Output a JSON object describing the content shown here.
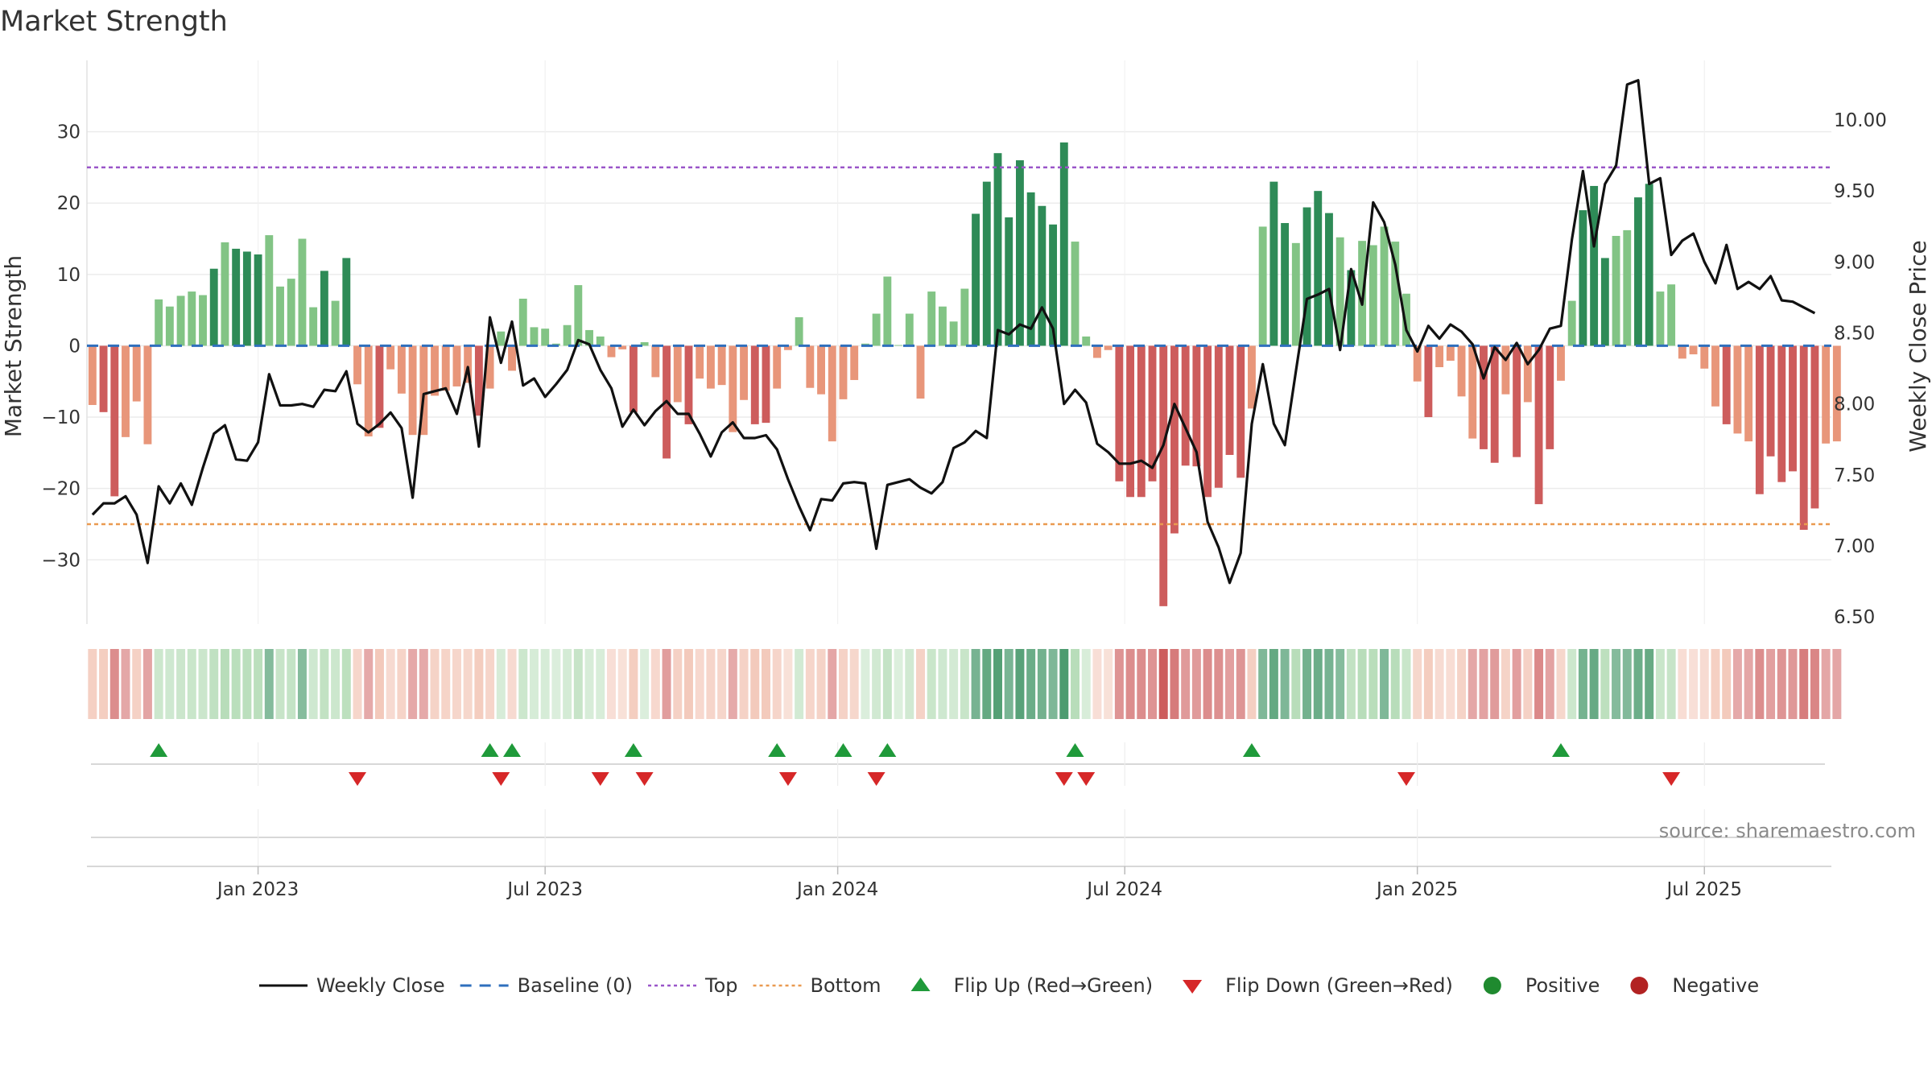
{
  "chart_data": {
    "type": "bar",
    "title": "Market Strength",
    "y_left_label": "Market Strength",
    "y_right_label": "Weekly Close Price",
    "y_left_ticks": [
      "30",
      "20",
      "10",
      "0",
      "−10",
      "−20",
      "−30"
    ],
    "y_left_tick_values": [
      30,
      20,
      10,
      0,
      -10,
      -20,
      -30
    ],
    "y_left_range": [
      -39,
      40
    ],
    "y_right_ticks": [
      "10.00",
      "9.50",
      "9.00",
      "8.50",
      "8.00",
      "7.50",
      "7.00",
      "6.50"
    ],
    "y_right_tick_values": [
      10.0,
      9.5,
      9.0,
      8.5,
      8.0,
      7.5,
      7.0,
      6.5
    ],
    "y_right_range": [
      6.45,
      10.42
    ],
    "x_ticks": [
      "Jan 2023",
      "Jul 2023",
      "Jan 2024",
      "Jul 2024",
      "Jan 2025",
      "Jul 2025"
    ],
    "x_tick_positions": [
      15.0,
      41.0,
      67.5,
      93.5,
      120.0,
      146.0
    ],
    "x_range": [
      -0.5,
      157.5
    ],
    "top_level": 25,
    "bottom_level": -25,
    "baseline": 0,
    "strength": [
      -8.3,
      -9.3,
      -21.1,
      -12.8,
      -7.8,
      -13.8,
      6.5,
      5.5,
      7.0,
      7.6,
      7.1,
      10.8,
      14.5,
      13.6,
      13.2,
      12.8,
      15.5,
      8.3,
      9.4,
      15.0,
      5.4,
      10.5,
      6.3,
      12.3,
      -5.4,
      -12.7,
      -11.5,
      -3.3,
      -6.7,
      -12.5,
      -12.5,
      -7.0,
      -6.3,
      -5.7,
      -5.2,
      -9.8,
      -6.0,
      2.0,
      -3.5,
      6.6,
      2.6,
      2.4,
      0.3,
      2.9,
      8.5,
      2.2,
      1.3,
      -1.6,
      -0.5,
      -9.3,
      0.5,
      -4.4,
      -15.8,
      -7.9,
      -11.0,
      -4.6,
      -6.0,
      -5.5,
      -12.1,
      -7.6,
      -11.0,
      -10.8,
      -6.0,
      -0.6,
      4.0,
      -5.9,
      -6.8,
      -13.4,
      -7.5,
      -4.8,
      0.3,
      4.5,
      9.7,
      0.1,
      4.5,
      -7.4,
      7.6,
      5.5,
      3.4,
      8.0,
      18.5,
      23.0,
      27.0,
      18.0,
      26.0,
      21.5,
      19.6,
      17.0,
      28.5,
      14.6,
      1.3,
      -1.7,
      -0.6,
      -19.0,
      -21.2,
      -21.2,
      -19.0,
      -36.5,
      -26.3,
      -16.8,
      -16.9,
      -21.2,
      -19.9,
      -15.3,
      -18.5,
      -8.8,
      16.7,
      23.0,
      17.2,
      14.4,
      19.4,
      21.7,
      18.6,
      15.2,
      10.6,
      14.7,
      14.1,
      16.7,
      14.6,
      7.3,
      -5.0,
      -10.0,
      -3.0,
      -2.1,
      -7.1,
      -13.0,
      -14.5,
      -16.4,
      -6.8,
      -15.6,
      -7.9,
      -22.2,
      -14.5,
      -4.9,
      6.3,
      19.0,
      22.4,
      12.3,
      15.4,
      16.2,
      20.8,
      22.7,
      7.6,
      8.6,
      -1.8,
      -1.2,
      -3.2,
      -8.5,
      -11.0,
      -12.3,
      -13.4,
      -20.8,
      -15.5,
      -19.1,
      -17.6,
      -25.8,
      -22.8,
      -13.7,
      -13.4
    ],
    "weekly_close": [
      7.22,
      7.3,
      7.3,
      7.35,
      7.22,
      6.88,
      7.42,
      7.3,
      7.44,
      7.29,
      7.55,
      7.79,
      7.85,
      7.61,
      7.6,
      7.73,
      8.21,
      7.99,
      7.99,
      8.0,
      7.98,
      8.1,
      8.09,
      8.23,
      7.86,
      7.8,
      7.86,
      7.94,
      7.83,
      7.34,
      8.07,
      8.09,
      8.11,
      7.93,
      8.26,
      7.7,
      8.61,
      8.29,
      8.58,
      8.13,
      8.18,
      8.05,
      8.14,
      8.24,
      8.45,
      8.42,
      8.24,
      8.11,
      7.84,
      7.96,
      7.85,
      7.95,
      8.02,
      7.93,
      7.93,
      7.79,
      7.63,
      7.8,
      7.87,
      7.76,
      7.76,
      7.78,
      7.68,
      7.47,
      7.28,
      7.11,
      7.33,
      7.32,
      7.44,
      7.45,
      7.44,
      6.98,
      7.43,
      7.45,
      7.47,
      7.41,
      7.37,
      7.45,
      7.69,
      7.73,
      7.81,
      7.76,
      8.52,
      8.49,
      8.56,
      8.53,
      8.68,
      8.53,
      8.0,
      8.1,
      8.01,
      7.72,
      7.66,
      7.58,
      7.58,
      7.6,
      7.55,
      7.71,
      8.0,
      7.83,
      7.66,
      7.17,
      6.99,
      6.74,
      6.95,
      7.86,
      8.28,
      7.86,
      7.71,
      8.23,
      8.74,
      8.77,
      8.81,
      8.38,
      8.95,
      8.7,
      9.42,
      9.28,
      8.98,
      8.52,
      8.37,
      8.55,
      8.46,
      8.56,
      8.51,
      8.42,
      8.18,
      8.4,
      8.31,
      8.43,
      8.28,
      8.38,
      8.53,
      8.55,
      9.16,
      9.64,
      9.11,
      9.55,
      9.68,
      10.25,
      10.28,
      9.55,
      9.59,
      9.05,
      9.15,
      9.2,
      9.0,
      8.85,
      9.12,
      8.81,
      8.86,
      8.81,
      8.9,
      8.73,
      8.72,
      8.68,
      8.64
    ],
    "flip_up_weeks": [
      6,
      36,
      38,
      49,
      62,
      68,
      72,
      89,
      105,
      133
    ],
    "flip_down_weeks": [
      24,
      37,
      46,
      50,
      63,
      71,
      88,
      90,
      119,
      143
    ],
    "legend": [
      "Weekly Close",
      "Baseline (0)",
      "Top",
      "Bottom",
      "Flip Up (Red→Green)",
      "Flip Down (Green→Red)",
      "Positive",
      "Negative"
    ]
  },
  "source_text": "source: sharemaestro.com",
  "colors": {
    "dark_green": "#2e8b57",
    "light_green": "#82c485",
    "dark_red": "#cd5c5c",
    "light_red": "#e8967a",
    "top_line": "#9a55c9",
    "bottom_line": "#ea9a50",
    "baseline": "#2f6fbd",
    "close_line": "#111111",
    "flip_up": "#1f9a3a",
    "flip_down": "#d62728",
    "legend_positive": "#1f8a2f",
    "legend_negative": "#b22222"
  }
}
